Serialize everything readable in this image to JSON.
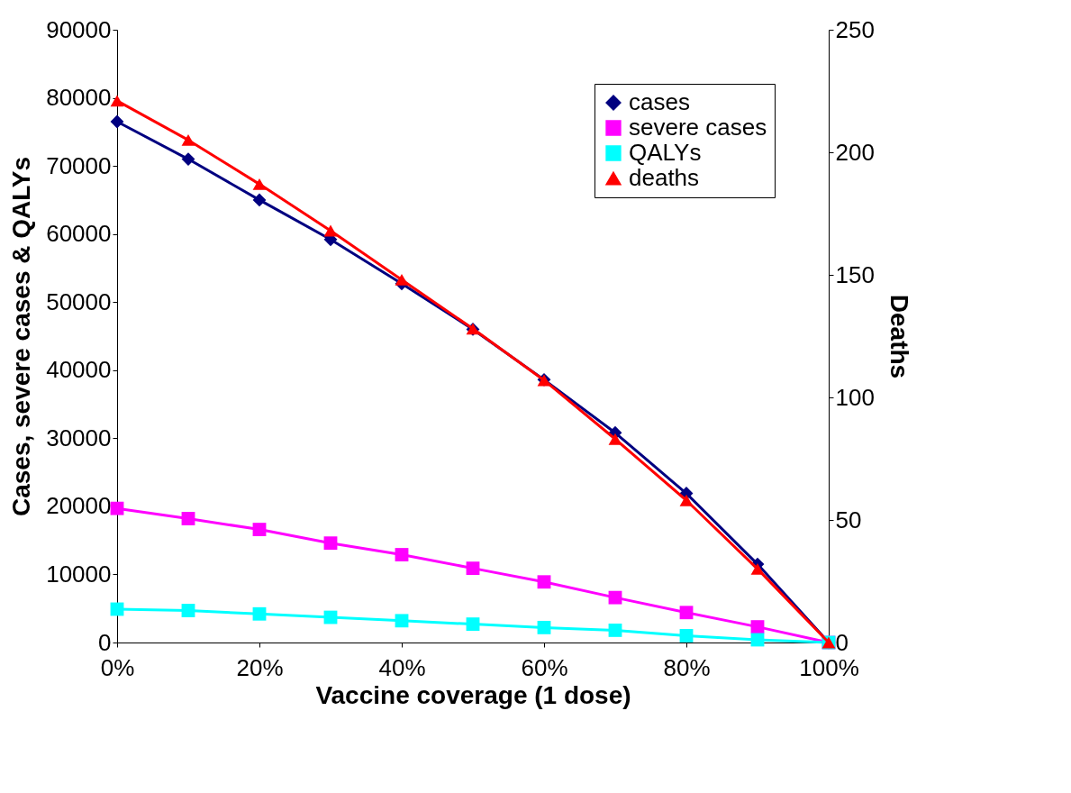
{
  "chart_data": {
    "type": "line",
    "xlabel": "Vaccine coverage (1 dose)",
    "ylabel": "Cases, severe cases & QALYs",
    "y2label": "Deaths",
    "x": [
      0,
      10,
      20,
      30,
      40,
      50,
      60,
      70,
      80,
      90,
      100
    ],
    "series": [
      {
        "name": "cases",
        "color": "#000080",
        "marker": "diamond",
        "values": [
          76500,
          71000,
          65000,
          59200,
          52700,
          46000,
          38600,
          30800,
          21900,
          11500,
          0
        ]
      },
      {
        "name": "severe cases",
        "color": "#ff00ff",
        "marker": "square",
        "values": [
          19700,
          18200,
          16600,
          14600,
          12900,
          10900,
          8900,
          6600,
          4400,
          2300,
          0
        ]
      },
      {
        "name": "QALYs",
        "color": "#00ffff",
        "marker": "square",
        "values": [
          4900,
          4700,
          4200,
          3700,
          3200,
          2700,
          2200,
          1800,
          1000,
          400,
          0
        ]
      },
      {
        "name": "deaths",
        "color": "#ff0000",
        "marker": "triangle",
        "axis": "y2",
        "values": [
          221,
          205,
          187,
          168,
          148,
          128,
          107,
          83,
          58,
          30,
          0
        ]
      }
    ],
    "xlim": [
      0,
      100
    ],
    "xticks": [
      {
        "value": 0,
        "label": "0%"
      },
      {
        "value": 20,
        "label": "20%"
      },
      {
        "value": 40,
        "label": "40%"
      },
      {
        "value": 60,
        "label": "60%"
      },
      {
        "value": 80,
        "label": "80%"
      },
      {
        "value": 100,
        "label": "100%"
      }
    ],
    "ylim": [
      0,
      90000
    ],
    "yticks": [
      0,
      10000,
      20000,
      30000,
      40000,
      50000,
      60000,
      70000,
      80000,
      90000
    ],
    "y2lim": [
      0,
      250
    ],
    "y2ticks": [
      0,
      50,
      100,
      150,
      200,
      250
    ],
    "grid": false,
    "legend": "top right"
  }
}
